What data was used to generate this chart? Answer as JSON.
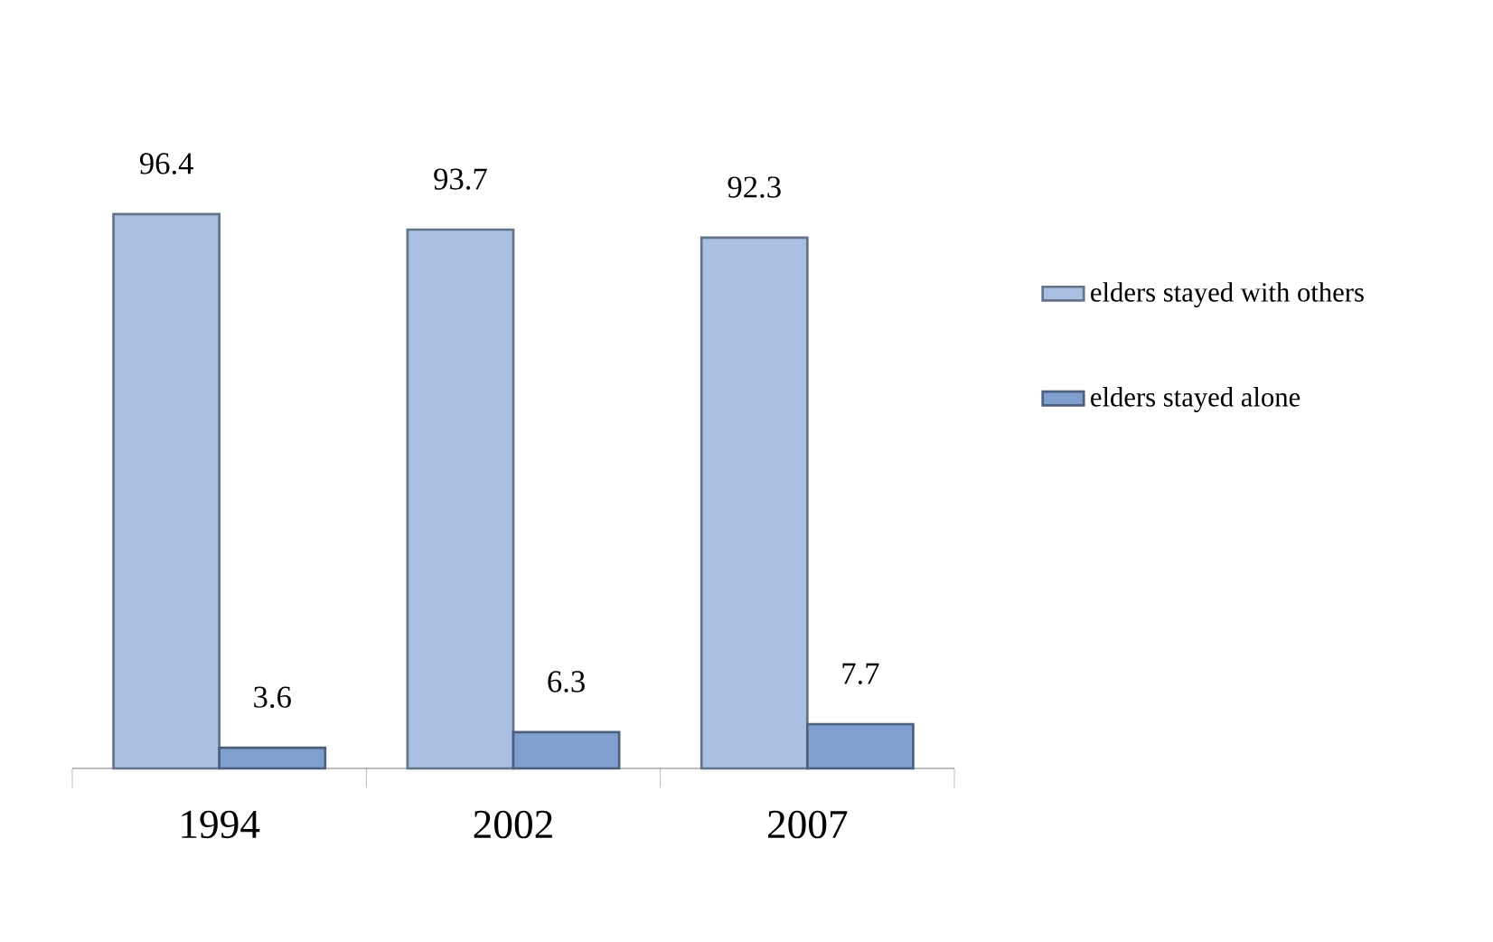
{
  "chart_data": {
    "type": "bar",
    "categories": [
      "1994",
      "2002",
      "2007"
    ],
    "series": [
      {
        "name": "elders stayed with others",
        "color": "#a9c0e2",
        "values": [
          96.4,
          93.7,
          92.3
        ]
      },
      {
        "name": "elders stayed alone",
        "color": "#7f9fcf",
        "values": [
          3.6,
          6.3,
          7.7
        ]
      }
    ],
    "data_labels": true,
    "legend": "right"
  }
}
